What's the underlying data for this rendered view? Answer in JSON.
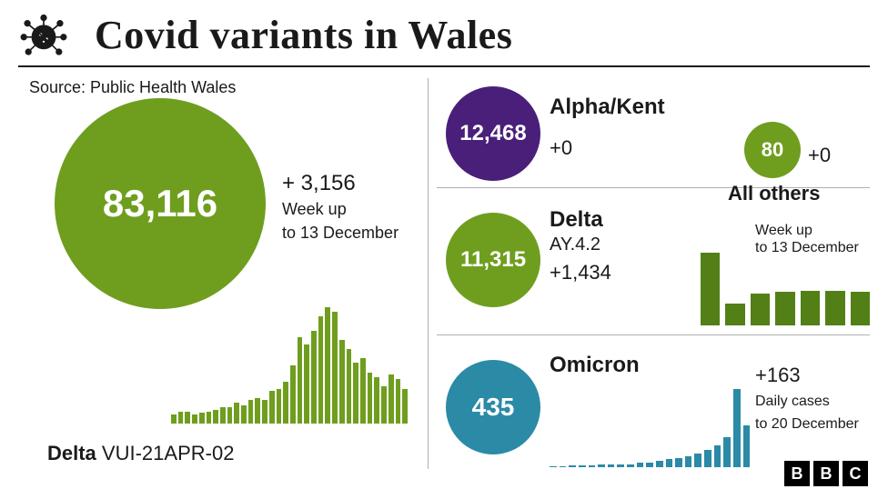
{
  "title": "Covid variants in Wales",
  "source": "Source: Public Health Wales",
  "colors": {
    "green": "#6f9e1f",
    "purple": "#4a1f7a",
    "teal": "#2b8aa6",
    "black": "#1a1a1a"
  },
  "delta": {
    "count": "83,116",
    "increase": "+ 3,156",
    "sub_line1": "Week up",
    "sub_line2": "to 13 December",
    "label_bold": "Delta",
    "label_code": "VUI-21APR-02",
    "circle_color": "#6f9e1f",
    "bar_color": "#6f9e1f",
    "bars": [
      8,
      10,
      10,
      8,
      9,
      10,
      12,
      14,
      14,
      18,
      16,
      20,
      22,
      20,
      28,
      30,
      36,
      50,
      74,
      68,
      80,
      92,
      100,
      96,
      72,
      64,
      52,
      56,
      44,
      40,
      32,
      42,
      38,
      30
    ]
  },
  "alpha": {
    "count": "12,468",
    "name": "Alpha/Kent",
    "increase": "+0",
    "circle_color": "#4a1f7a"
  },
  "others": {
    "count": "80",
    "increase": "+0",
    "label": "All others",
    "circle_color": "#6f9e1f"
  },
  "delta_ay": {
    "count": "11,315",
    "name": "Delta",
    "sub": "AY.4.2",
    "increase": "+1,434",
    "circle_color": "#6f9e1f",
    "bar_color": "#528016",
    "chart_label_1": "Week up",
    "chart_label_2": "to 13 December",
    "bars": [
      100,
      30,
      44,
      46,
      48,
      48,
      46
    ]
  },
  "omicron": {
    "count": "435",
    "name": "Omicron",
    "increase": "+163",
    "sub_line1": "Daily cases",
    "sub_line2": "to 20 December",
    "circle_color": "#2b8aa6",
    "bar_color": "#2b8aa6",
    "bars": [
      1,
      1,
      2,
      2,
      2,
      3,
      3,
      4,
      4,
      6,
      6,
      8,
      10,
      12,
      14,
      18,
      22,
      28,
      38,
      100,
      54
    ]
  },
  "bbc": [
    "B",
    "B",
    "C"
  ]
}
